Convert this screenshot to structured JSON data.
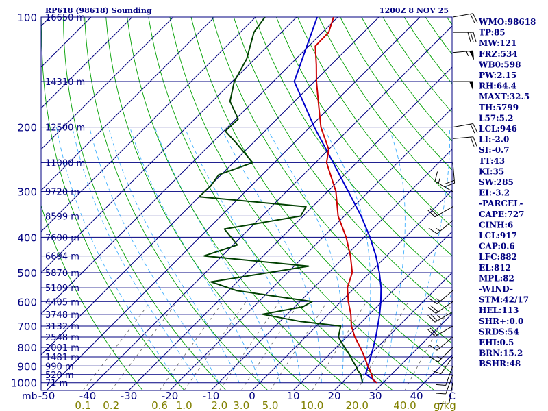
{
  "chart_data": {
    "type": "line",
    "title": "RP618 (98618) Sounding",
    "datetime": "1200Z  8 NOV 25",
    "pressure_levels": [
      100,
      200,
      300,
      400,
      500,
      600,
      700,
      800,
      900,
      1000
    ],
    "pressure_unit_label": "mb",
    "isobar_lines": [
      100,
      150,
      200,
      250,
      300,
      350,
      400,
      450,
      500,
      550,
      600,
      650,
      700,
      750,
      800,
      850,
      900,
      950,
      1000
    ],
    "height_labels": [
      {
        "p": 100,
        "label": "16650 m"
      },
      {
        "p": 150,
        "label": "14310 m"
      },
      {
        "p": 200,
        "label": "12500 m"
      },
      {
        "p": 250,
        "label": "11000 m"
      },
      {
        "p": 300,
        "label": "9720 m"
      },
      {
        "p": 350,
        "label": "8599 m"
      },
      {
        "p": 400,
        "label": "7600 m"
      },
      {
        "p": 450,
        "label": "6694 m"
      },
      {
        "p": 500,
        "label": "5870 m"
      },
      {
        "p": 550,
        "label": "5109 m"
      },
      {
        "p": 600,
        "label": "4405 m"
      },
      {
        "p": 650,
        "label": "3748 m"
      },
      {
        "p": 700,
        "label": "3132 m"
      },
      {
        "p": 750,
        "label": "2548 m"
      },
      {
        "p": 800,
        "label": "2001 m"
      },
      {
        "p": 850,
        "label": "1481 m"
      },
      {
        "p": 900,
        "label": "990 m"
      },
      {
        "p": 950,
        "label": "520 m"
      },
      {
        "p": 1000,
        "label": "71 m"
      }
    ],
    "temperature_ticks": [
      -50,
      -40,
      -30,
      -20,
      -10,
      0,
      10,
      20,
      30,
      40
    ],
    "temperature_tick_labels": [
      "-50",
      "-40",
      "-30",
      "-20",
      "-10",
      "0",
      "10",
      "20",
      "30",
      "40"
    ],
    "temperature_unit_label": "C",
    "mixing_ratio_labels": [
      "0.1",
      "0.2",
      "0.6",
      "1.0",
      "2.0",
      "3.0",
      "5.0",
      "10.0",
      "20.0",
      "40.0"
    ],
    "mixing_ratio_unit_label": "g/kg",
    "temperature_profile": [
      {
        "p": 1000,
        "t": 28.5
      },
      {
        "p": 990,
        "t": 27.5
      },
      {
        "p": 975,
        "t": 26.5
      },
      {
        "p": 950,
        "t": 25.2
      },
      {
        "p": 925,
        "t": 23.8
      },
      {
        "p": 900,
        "t": 22.2
      },
      {
        "p": 850,
        "t": 19.2
      },
      {
        "p": 800,
        "t": 15.8
      },
      {
        "p": 750,
        "t": 12.0
      },
      {
        "p": 700,
        "t": 8.5
      },
      {
        "p": 650,
        "t": 5.5
      },
      {
        "p": 600,
        "t": 1.8
      },
      {
        "p": 550,
        "t": -1.8
      },
      {
        "p": 500,
        "t": -4.3
      },
      {
        "p": 450,
        "t": -8.8
      },
      {
        "p": 400,
        "t": -14.4
      },
      {
        "p": 350,
        "t": -21.5
      },
      {
        "p": 300,
        "t": -28.0
      },
      {
        "p": 250,
        "t": -37.3
      },
      {
        "p": 230,
        "t": -40.0
      },
      {
        "p": 200,
        "t": -47.3
      },
      {
        "p": 175,
        "t": -53.0
      },
      {
        "p": 150,
        "t": -59.5
      },
      {
        "p": 135,
        "t": -63.6
      },
      {
        "p": 120,
        "t": -68.4
      },
      {
        "p": 110,
        "t": -68.5
      },
      {
        "p": 100,
        "t": -71.0
      }
    ],
    "dewpoint_profile": [
      {
        "p": 1000,
        "t": 25.0
      },
      {
        "p": 975,
        "t": 23.8
      },
      {
        "p": 950,
        "t": 22.6
      },
      {
        "p": 925,
        "t": 20.8
      },
      {
        "p": 900,
        "t": 19.3
      },
      {
        "p": 875,
        "t": 17.5
      },
      {
        "p": 850,
        "t": 15.8
      },
      {
        "p": 825,
        "t": 14.0
      },
      {
        "p": 800,
        "t": 12.0
      },
      {
        "p": 775,
        "t": 10.0
      },
      {
        "p": 750,
        "t": 8.0
      },
      {
        "p": 700,
        "t": 5.9
      },
      {
        "p": 680,
        "t": -5.0
      },
      {
        "p": 650,
        "t": -16.0
      },
      {
        "p": 620,
        "t": -8.0
      },
      {
        "p": 600,
        "t": -7.0
      },
      {
        "p": 560,
        "t": -28.0
      },
      {
        "p": 530,
        "t": -36.4
      },
      {
        "p": 480,
        "t": -16.5
      },
      {
        "p": 450,
        "t": -44.4
      },
      {
        "p": 420,
        "t": -39.0
      },
      {
        "p": 380,
        "t": -46.0
      },
      {
        "p": 350,
        "t": -30.6
      },
      {
        "p": 330,
        "t": -31.6
      },
      {
        "p": 310,
        "t": -60.0
      },
      {
        "p": 290,
        "t": -59.8
      },
      {
        "p": 270,
        "t": -60.6
      },
      {
        "p": 250,
        "t": -55.3
      },
      {
        "p": 220,
        "t": -64.4
      },
      {
        "p": 205,
        "t": -69.6
      },
      {
        "p": 190,
        "t": -69.4
      },
      {
        "p": 170,
        "t": -75.7
      },
      {
        "p": 150,
        "t": -79.5
      },
      {
        "p": 130,
        "t": -82.0
      },
      {
        "p": 110,
        "t": -86.7
      },
      {
        "p": 100,
        "t": -87.7
      }
    ],
    "parcel_profile": [
      {
        "p": 1000,
        "t": 28.5
      },
      {
        "p": 946,
        "t": 23.6
      },
      {
        "p": 900,
        "t": 22.3
      },
      {
        "p": 850,
        "t": 20.7
      },
      {
        "p": 800,
        "t": 19.0
      },
      {
        "p": 750,
        "t": 17.1
      },
      {
        "p": 700,
        "t": 14.9
      },
      {
        "p": 650,
        "t": 12.5
      },
      {
        "p": 600,
        "t": 9.7
      },
      {
        "p": 550,
        "t": 6.4
      },
      {
        "p": 500,
        "t": 2.3
      },
      {
        "p": 450,
        "t": -2.6
      },
      {
        "p": 400,
        "t": -8.6
      },
      {
        "p": 350,
        "t": -15.9
      },
      {
        "p": 300,
        "t": -25.0
      },
      {
        "p": 250,
        "t": -35.7
      },
      {
        "p": 200,
        "t": -48.9
      },
      {
        "p": 150,
        "t": -64.9
      },
      {
        "p": 100,
        "t": -75.0
      }
    ],
    "wind_barbs": [
      {
        "p": 100,
        "dir": 80,
        "spd": 20
      },
      {
        "p": 110,
        "dir": 90,
        "spd": 30
      },
      {
        "p": 125,
        "dir": 85,
        "spd": 55
      },
      {
        "p": 150,
        "dir": 90,
        "spd": 50
      },
      {
        "p": 200,
        "dir": 80,
        "spd": 20
      },
      {
        "p": 215,
        "dir": 85,
        "spd": 20
      },
      {
        "p": 250,
        "dir": 175,
        "spd": 20
      },
      {
        "p": 300,
        "dir": 300,
        "spd": 15
      },
      {
        "p": 330,
        "dir": 240,
        "spd": 20
      },
      {
        "p": 360,
        "dir": 230,
        "spd": 15
      },
      {
        "p": 560,
        "dir": 230,
        "spd": 15
      },
      {
        "p": 600,
        "dir": 235,
        "spd": 20
      },
      {
        "p": 640,
        "dir": 240,
        "spd": 25
      },
      {
        "p": 700,
        "dir": 240,
        "spd": 20
      },
      {
        "p": 750,
        "dir": 230,
        "spd": 15
      },
      {
        "p": 800,
        "dir": 225,
        "spd": 15
      },
      {
        "p": 850,
        "dir": 215,
        "spd": 10
      },
      {
        "p": 900,
        "dir": 200,
        "spd": 10
      },
      {
        "p": 950,
        "dir": 200,
        "spd": 10
      },
      {
        "p": 1000,
        "dir": 190,
        "spd": 10
      }
    ]
  },
  "indices": [
    "WMO:98618",
    "TP:85",
    "MW:121",
    "FRZ:534",
    "WB0:598",
    "PW:2.15",
    "RH:64.4",
    "MAXT:32.5",
    "TH:5799",
    "L57:5.2",
    "LCL:946",
    "LI:-2.0",
    "SI:-0.7",
    "TT:43",
    "KI:35",
    "SW:285",
    "EI:-3.2",
    "-PARCEL-",
    "CAPE:727",
    "CINH:6",
    "LCL:917",
    "CAP:0.6",
    "LFC:882",
    "EL:812",
    "MPL:82",
    "-WIND-",
    "STM:42/17",
    "HEL:113",
    "SHR+:0.0",
    "SRDS:54",
    "EHI:0.5",
    "BRN:15.2",
    "BSHR:48"
  ],
  "colors": {
    "background": "#ffffff",
    "isobar": "#000080",
    "isotherm": "#000080",
    "dry_adiabat": "#00a000",
    "moist_adiabat": "#40b0ff",
    "mixing_ratio": "#606060",
    "temperature": "#cc0000",
    "dewpoint": "#004000",
    "parcel": "#0000cc",
    "title_text": "#000080",
    "bottom_labels": "#808000"
  }
}
